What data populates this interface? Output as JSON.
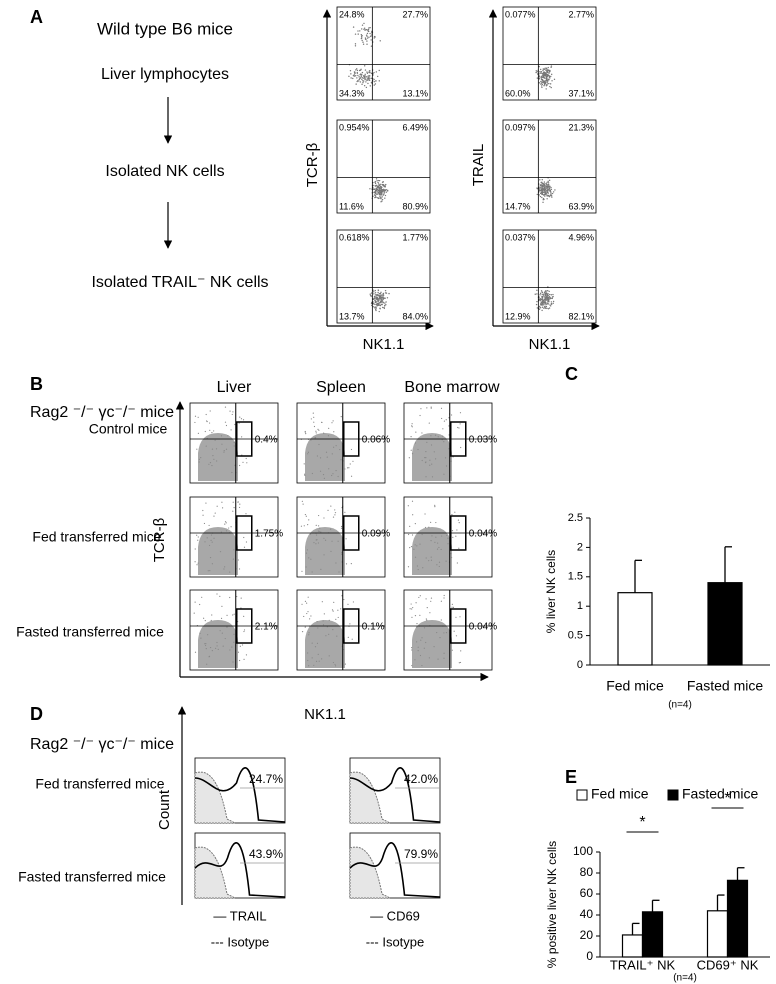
{
  "panels": {
    "a": {
      "label": "A",
      "steps": [
        "Wild type B6 mice",
        "Liver lymphocytes",
        "Isolated NK cells",
        "Isolated TRAIL⁻ NK cells"
      ],
      "columns": [
        {
          "y_label": "TCR-β",
          "x_label": "NK1.1",
          "plots": [
            [
              "24.8%",
              "27.7%",
              "34.3%",
              "13.1%"
            ],
            [
              "0.954%",
              "6.49%",
              "11.6%",
              "80.9%"
            ],
            [
              "0.618%",
              "1.77%",
              "13.7%",
              "84.0%"
            ]
          ]
        },
        {
          "y_label": "TRAIL",
          "x_label": "NK1.1",
          "plots": [
            [
              "0.077%",
              "2.77%",
              "60.0%",
              "37.1%"
            ],
            [
              "0.097%",
              "21.3%",
              "14.7%",
              "63.9%"
            ],
            [
              "0.037%",
              "4.96%",
              "12.9%",
              "82.1%"
            ]
          ]
        }
      ]
    },
    "b": {
      "label": "B",
      "title": "Rag2 ⁻/⁻ γc⁻/⁻ mice",
      "columns": [
        "Liver",
        "Spleen",
        "Bone marrow"
      ],
      "rows": [
        "Control mice",
        "Fed transferred mice",
        "Fasted transferred mice"
      ],
      "gates": [
        [
          "0.4%",
          "0.06%",
          "0.03%"
        ],
        [
          "1.75%",
          "0.09%",
          "0.04%"
        ],
        [
          "2.1%",
          "0.1%",
          "0.04%"
        ]
      ],
      "y_label": "TCR-β",
      "x_label": "NK1.1"
    },
    "d": {
      "label": "D",
      "title": "Rag2 ⁻/⁻ γc⁻/⁻ mice",
      "rows": [
        "Fed transferred mice",
        "Fasted transferred mice"
      ],
      "y_label": "Count",
      "columns": [
        {
          "stain": "— TRAIL",
          "isotype": "--- Isotype",
          "percents": [
            "24.7%",
            "43.9%"
          ]
        },
        {
          "stain": "— CD69",
          "isotype": "--- Isotype",
          "percents": [
            "42.0%",
            "79.9%"
          ]
        }
      ]
    }
  },
  "chart_data": [
    {
      "type": "bar",
      "label": "C",
      "y_label": "% liver NK cells",
      "categories": [
        "Fed mice",
        "Fasted mice"
      ],
      "values": [
        1.23,
        1.4
      ],
      "errors": [
        0.55,
        0.61
      ],
      "colors": [
        "#ffffff",
        "#000000"
      ],
      "ylim": [
        0,
        2.5
      ],
      "yticks": [
        0,
        0.5,
        1,
        1.5,
        2,
        2.5
      ],
      "note": "(n=4)"
    },
    {
      "type": "bar",
      "label": "E",
      "y_label": "% positive liver NK cells",
      "categories": [
        "TRAIL⁺ NK",
        "CD69⁺ NK"
      ],
      "series": [
        {
          "name": "Fed mice",
          "color": "#ffffff",
          "values": [
            21,
            44
          ],
          "errors": [
            11,
            15
          ]
        },
        {
          "name": "Fasted mice",
          "color": "#000000",
          "values": [
            43,
            73
          ],
          "errors": [
            11,
            12
          ]
        }
      ],
      "ylim": [
        0,
        100
      ],
      "yticks": [
        0,
        20,
        40,
        60,
        80,
        100
      ],
      "annotations": [
        "*",
        "*"
      ],
      "note": "(n=4)",
      "legend": "top"
    }
  ]
}
